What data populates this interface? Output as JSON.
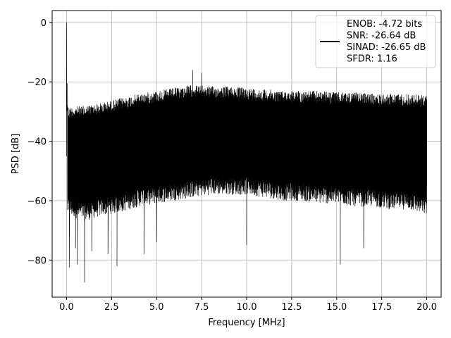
{
  "chart_data": {
    "type": "line",
    "xlabel": "Frequency [MHz]",
    "ylabel": "PSD [dB]",
    "xlim": [
      -0.8,
      20.8
    ],
    "ylim": [
      -92.5,
      4.0
    ],
    "x_ticks": [
      0.0,
      2.5,
      5.0,
      7.5,
      10.0,
      12.5,
      15.0,
      17.5,
      20.0
    ],
    "x_tick_labels": [
      "0.0",
      "2.5",
      "5.0",
      "7.5",
      "10.0",
      "12.5",
      "15.0",
      "17.5",
      "20.0"
    ],
    "y_ticks": [
      0,
      -20,
      -40,
      -60,
      -80
    ],
    "y_tick_labels": [
      "0",
      "−20",
      "−40",
      "−60",
      "−80"
    ],
    "grid": true,
    "legend_position": "top-right",
    "legend_lines": [
      "ENOB: -4.72 bits",
      "SNR: -26.64 dB",
      "SINAD: -26.65 dB",
      "SFDR: 1.16"
    ],
    "series": [
      {
        "color": "#000000",
        "description": "Dense noise-like power spectral density trace from 0 to 20 MHz",
        "peak": {
          "x": 0.0,
          "y": 0.0
        },
        "upper_envelope": [
          [
            0.0,
            -20
          ],
          [
            0.1,
            -27
          ],
          [
            1.0,
            -26.5
          ],
          [
            2.0,
            -25.5
          ],
          [
            3.0,
            -24
          ],
          [
            4.0,
            -22.5
          ],
          [
            5.0,
            -21.5
          ],
          [
            6.0,
            -20.5
          ],
          [
            7.0,
            -19.5
          ],
          [
            8.0,
            -20
          ],
          [
            9.0,
            -20
          ],
          [
            10.0,
            -20.5
          ],
          [
            11.0,
            -21
          ],
          [
            12.0,
            -21.5
          ],
          [
            13.0,
            -21.5
          ],
          [
            14.0,
            -21.5
          ],
          [
            15.0,
            -22
          ],
          [
            16.0,
            -22
          ],
          [
            17.0,
            -22.5
          ],
          [
            18.0,
            -22.5
          ],
          [
            19.0,
            -22.5
          ],
          [
            20.0,
            -23
          ]
        ],
        "lower_envelope": [
          [
            0.1,
            -67
          ],
          [
            1.0,
            -69
          ],
          [
            2.0,
            -67
          ],
          [
            3.0,
            -66
          ],
          [
            4.0,
            -64
          ],
          [
            5.0,
            -63
          ],
          [
            6.0,
            -62
          ],
          [
            7.0,
            -61
          ],
          [
            8.0,
            -60
          ],
          [
            9.0,
            -60
          ],
          [
            10.0,
            -60
          ],
          [
            11.0,
            -61
          ],
          [
            12.0,
            -62
          ],
          [
            13.0,
            -62
          ],
          [
            14.0,
            -63
          ],
          [
            15.0,
            -63
          ],
          [
            16.0,
            -64
          ],
          [
            17.0,
            -64
          ],
          [
            18.0,
            -65
          ],
          [
            19.0,
            -65
          ],
          [
            20.0,
            -67
          ]
        ],
        "notable_dips": [
          [
            0.15,
            -82.5
          ],
          [
            0.5,
            -76
          ],
          [
            0.6,
            -81.5
          ],
          [
            1.0,
            -87.5
          ],
          [
            1.4,
            -77
          ],
          [
            2.3,
            -78
          ],
          [
            2.8,
            -82
          ],
          [
            4.3,
            -78
          ],
          [
            5.0,
            -74
          ],
          [
            10.0,
            -75
          ],
          [
            15.2,
            -81.5
          ],
          [
            16.5,
            -76
          ]
        ],
        "notable_spikes": [
          [
            0.02,
            0.0
          ],
          [
            0.05,
            -20.5
          ],
          [
            7.0,
            -16
          ],
          [
            7.5,
            -17
          ]
        ]
      }
    ]
  }
}
